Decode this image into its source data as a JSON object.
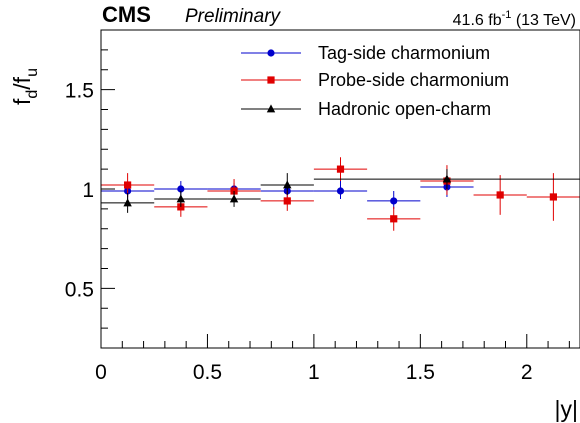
{
  "header": {
    "experiment": "CMS",
    "status": "Preliminary",
    "lumi_value": "41.6 fb",
    "lumi_exp": "-1",
    "energy": " (13 TeV)"
  },
  "chart_data": {
    "type": "scatter",
    "xlabel": "|y|",
    "ylabel_main": "f",
    "ylabel_num_sub": "d",
    "ylabel_sep": "/f",
    "ylabel_den_sub": "u",
    "xlim": [
      0,
      2.25
    ],
    "ylim": [
      0.2,
      1.8
    ],
    "xticks": [
      0,
      0.5,
      1,
      1.5,
      2
    ],
    "xtick_labels": [
      "0",
      "0.5",
      "1",
      "1.5",
      "2"
    ],
    "yticks": [
      0.5,
      1,
      1.5
    ],
    "ytick_labels": [
      "0.5",
      "1",
      "1.5"
    ],
    "legend_position": "top-right",
    "series": [
      {
        "name": "Tag-side charmonium",
        "color": "#0000cc",
        "marker": "circle",
        "points": [
          {
            "xlo": 0.0,
            "xhi": 0.25,
            "y": 0.99,
            "ylo": 0.95,
            "yhi": 1.03
          },
          {
            "xlo": 0.25,
            "xhi": 0.5,
            "y": 1.0,
            "ylo": 0.96,
            "yhi": 1.04
          },
          {
            "xlo": 0.5,
            "xhi": 0.75,
            "y": 1.0,
            "ylo": 0.96,
            "yhi": 1.03
          },
          {
            "xlo": 0.75,
            "xhi": 1.0,
            "y": 0.99,
            "ylo": 0.95,
            "yhi": 1.03
          },
          {
            "xlo": 1.0,
            "xhi": 1.25,
            "y": 0.99,
            "ylo": 0.95,
            "yhi": 1.04
          },
          {
            "xlo": 1.25,
            "xhi": 1.5,
            "y": 0.94,
            "ylo": 0.9,
            "yhi": 0.99
          },
          {
            "xlo": 1.5,
            "xhi": 1.75,
            "y": 1.01,
            "ylo": 0.96,
            "yhi": 1.06
          }
        ]
      },
      {
        "name": "Probe-side charmonium",
        "color": "#e00000",
        "marker": "square",
        "points": [
          {
            "xlo": 0.0,
            "xhi": 0.25,
            "y": 1.02,
            "ylo": 0.96,
            "yhi": 1.08
          },
          {
            "xlo": 0.25,
            "xhi": 0.5,
            "y": 0.91,
            "ylo": 0.86,
            "yhi": 0.96
          },
          {
            "xlo": 0.5,
            "xhi": 0.75,
            "y": 0.99,
            "ylo": 0.94,
            "yhi": 1.05
          },
          {
            "xlo": 0.75,
            "xhi": 1.0,
            "y": 0.94,
            "ylo": 0.89,
            "yhi": 0.99
          },
          {
            "xlo": 1.0,
            "xhi": 1.25,
            "y": 1.1,
            "ylo": 1.04,
            "yhi": 1.16
          },
          {
            "xlo": 1.25,
            "xhi": 1.5,
            "y": 0.85,
            "ylo": 0.79,
            "yhi": 0.91
          },
          {
            "xlo": 1.5,
            "xhi": 1.75,
            "y": 1.04,
            "ylo": 0.97,
            "yhi": 1.12
          },
          {
            "xlo": 1.75,
            "xhi": 2.0,
            "y": 0.97,
            "ylo": 0.87,
            "yhi": 1.07
          },
          {
            "xlo": 2.0,
            "xhi": 2.25,
            "y": 0.96,
            "ylo": 0.84,
            "yhi": 1.08
          }
        ]
      },
      {
        "name": "Hadronic open-charm",
        "color": "#000000",
        "marker": "triangle",
        "points": [
          {
            "xlo": 0.0,
            "xhi": 0.25,
            "y": 0.93,
            "ylo": 0.88,
            "yhi": 0.98
          },
          {
            "xlo": 0.25,
            "xhi": 0.5,
            "y": 0.95,
            "ylo": 0.91,
            "yhi": 0.99
          },
          {
            "xlo": 0.5,
            "xhi": 0.75,
            "y": 0.95,
            "ylo": 0.91,
            "yhi": 0.99
          },
          {
            "xlo": 0.75,
            "xhi": 1.0,
            "y": 1.02,
            "ylo": 0.97,
            "yhi": 1.08
          },
          {
            "xlo": 1.0,
            "xhi": 2.25,
            "y": 1.05,
            "ylo": 1.0,
            "yhi": 1.1
          }
        ]
      }
    ]
  }
}
